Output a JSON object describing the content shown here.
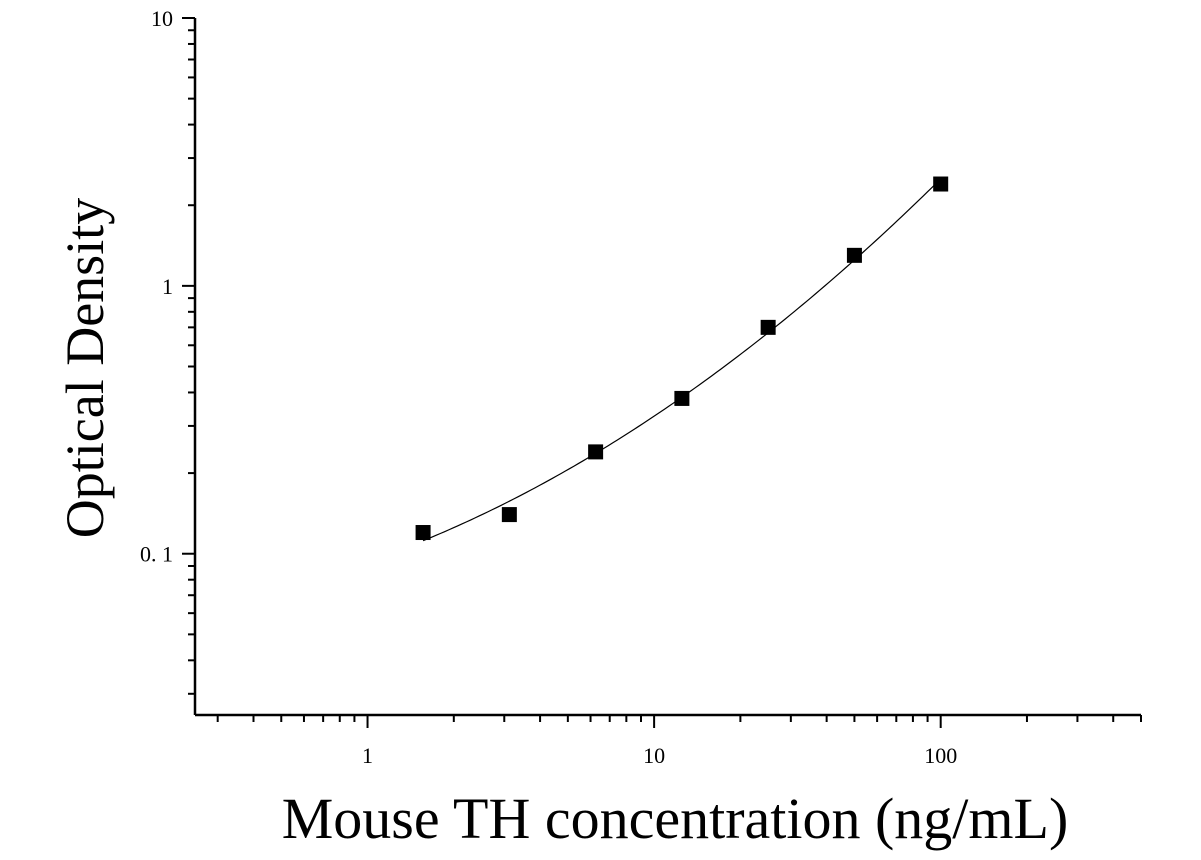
{
  "chart_data": {
    "type": "scatter",
    "title": "",
    "xlabel": "Mouse TH concentration (ng/mL)",
    "ylabel": "Optical Density",
    "x_scale": "log",
    "y_scale": "log",
    "xlim": [
      0.25,
      500
    ],
    "ylim": [
      0.025,
      10
    ],
    "x_ticks": [
      {
        "value": 1,
        "label": "1"
      },
      {
        "value": 10,
        "label": "10"
      },
      {
        "value": 100,
        "label": "100"
      }
    ],
    "y_ticks": [
      {
        "value": 10,
        "label": "10"
      },
      {
        "value": 1,
        "label": "1"
      },
      {
        "value": 0.1,
        "label": "0. 1"
      }
    ],
    "grid": false,
    "legend": "none",
    "marker": "square",
    "marker_color": "#000000",
    "line_color": "#000000",
    "series": [
      {
        "x": [
          1.5625,
          3.125,
          6.25,
          12.5,
          25,
          50,
          100
        ],
        "y": [
          0.12,
          0.14,
          0.24,
          0.38,
          0.7,
          1.3,
          2.4
        ],
        "fit_curve": true
      }
    ]
  }
}
